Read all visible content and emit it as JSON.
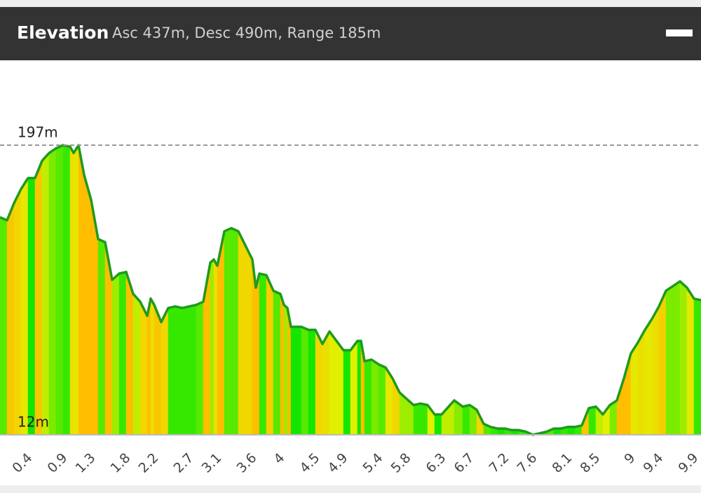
{
  "chart_data": {
    "type": "area",
    "title": "Elevation",
    "subtitle": "Asc 437m, Desc 490m, Range 185m",
    "color": "#1e9a1e",
    "x": [
      0.05,
      0.15,
      0.25,
      0.35,
      0.45,
      0.55,
      0.65,
      0.75,
      0.85,
      0.95,
      1.05,
      1.1,
      1.17,
      1.25,
      1.35,
      1.45,
      1.55,
      1.65,
      1.75,
      1.85,
      1.95,
      2.05,
      2.15,
      2.2,
      2.25,
      2.35,
      2.45,
      2.55,
      2.65,
      2.75,
      2.85,
      2.95,
      3.05,
      3.1,
      3.15,
      3.25,
      3.35,
      3.45,
      3.55,
      3.65,
      3.7,
      3.75,
      3.85,
      3.95,
      4.05,
      4.1,
      4.15,
      4.2,
      4.35,
      4.45,
      4.55,
      4.65,
      4.75,
      4.85,
      4.95,
      5.05,
      5.15,
      5.2,
      5.25,
      5.35,
      5.45,
      5.55,
      5.65,
      5.75,
      5.85,
      5.95,
      6.05,
      6.15,
      6.25,
      6.35,
      6.45,
      6.53,
      6.65,
      6.75,
      6.85,
      6.95,
      7.05,
      7.15,
      7.25,
      7.35,
      7.45,
      7.55,
      7.65,
      7.75,
      7.85,
      7.95,
      8.05,
      8.15,
      8.25,
      8.35,
      8.45,
      8.55,
      8.65,
      8.75,
      8.85,
      8.95,
      9.05,
      9.15,
      9.25,
      9.35,
      9.45,
      9.55,
      9.65,
      9.75,
      9.85,
      9.95,
      10.05
    ],
    "values": [
      151,
      149,
      160,
      169,
      176,
      176,
      187,
      192,
      195,
      197,
      196,
      192,
      197,
      178,
      162,
      137,
      135,
      111,
      115,
      116,
      102,
      97,
      88,
      99,
      95,
      84,
      93,
      94,
      93,
      94,
      95,
      97,
      122,
      124,
      120,
      142,
      144,
      142,
      133,
      124,
      106,
      115,
      114,
      104,
      102,
      95,
      93,
      81,
      81,
      79,
      79,
      70,
      78,
      72,
      66,
      66,
      72,
      72,
      59,
      60,
      57,
      55,
      48,
      39,
      35,
      31,
      32,
      31,
      25,
      25,
      30,
      34,
      30,
      31,
      28,
      19,
      17,
      16,
      16,
      15,
      15,
      14,
      12,
      13,
      14,
      16,
      16,
      17,
      17,
      18,
      29,
      30,
      25,
      31,
      34,
      48,
      64,
      71,
      79,
      86,
      94,
      104,
      107,
      110,
      106,
      99,
      98
    ],
    "xlim": [
      0.05,
      10.05
    ],
    "xticks": [
      0.4,
      0.9,
      1.3,
      1.8,
      2.2,
      2.7,
      3.1,
      3.6,
      4.0,
      4.5,
      4.9,
      5.4,
      5.8,
      6.3,
      6.7,
      7.2,
      7.6,
      8.1,
      8.5,
      9.0,
      9.4,
      9.9
    ],
    "ylim": [
      12,
      197
    ],
    "yticks": [
      {
        "value": 197,
        "label": "197m"
      },
      {
        "value": 12,
        "label": "12m"
      }
    ]
  }
}
